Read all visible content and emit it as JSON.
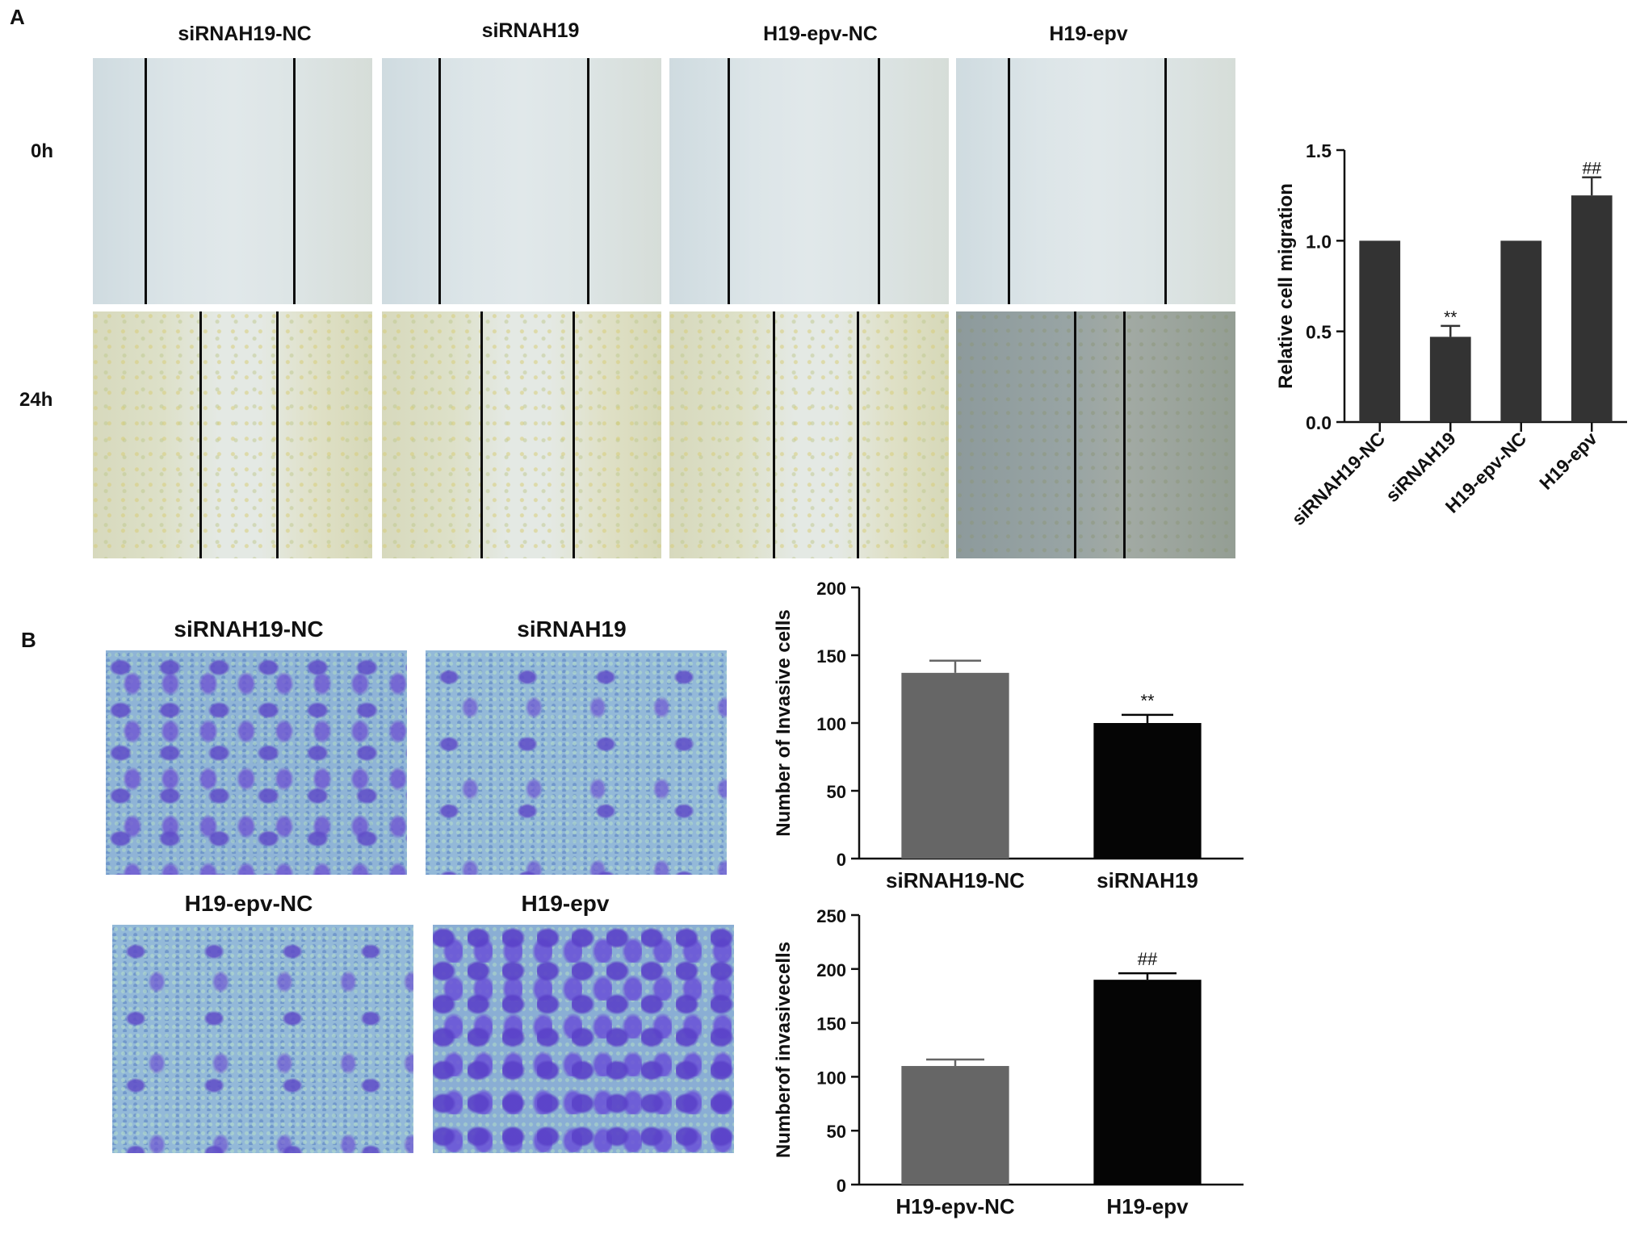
{
  "panel_a": {
    "letter": "A",
    "columns": [
      "siRNAH19-NC",
      "siRNAH19",
      "H19-epv-NC",
      "H19-epv"
    ],
    "rows": [
      "0h",
      "24h"
    ]
  },
  "panel_b": {
    "letter": "B",
    "images_top": [
      "siRNAH19-NC",
      "siRNAH19"
    ],
    "images_bottom": [
      "H19-epv-NC",
      "H19-epv"
    ]
  },
  "chart_data": [
    {
      "type": "bar",
      "categories": [
        "siRNAH19-NC",
        "siRNAH19",
        "H19-epv-NC",
        "H19-epv"
      ],
      "values": [
        1.0,
        0.47,
        1.0,
        1.25
      ],
      "errors": [
        0,
        0.06,
        0,
        0.1
      ],
      "annotations": [
        "",
        "**",
        "",
        "##"
      ],
      "title": "",
      "xlabel": "",
      "ylabel": "Relative cell migration",
      "ylim": [
        0,
        1.5
      ],
      "yticks": [
        "0.0",
        "0.5",
        "1.0",
        "1.5"
      ],
      "color": "#333333"
    },
    {
      "type": "bar",
      "categories": [
        "siRNAH19-NC",
        "siRNAH19"
      ],
      "values": [
        137,
        100
      ],
      "errors": [
        9,
        6
      ],
      "annotations": [
        "",
        "**"
      ],
      "title": "",
      "xlabel": "",
      "ylabel": "Number of Invasive cells",
      "ylim": [
        0,
        200
      ],
      "yticks": [
        "0",
        "50",
        "100",
        "150",
        "200"
      ],
      "colors": [
        "#666666",
        "#050505"
      ]
    },
    {
      "type": "bar",
      "categories": [
        "H19-epv-NC",
        "H19-epv"
      ],
      "values": [
        110,
        190
      ],
      "errors": [
        6,
        6
      ],
      "annotations": [
        "",
        "##"
      ],
      "title": "",
      "xlabel": "",
      "ylabel": "Numberof invasivecells",
      "ylim": [
        0,
        250
      ],
      "yticks": [
        "0",
        "50",
        "100",
        "150",
        "200",
        "250"
      ],
      "colors": [
        "#666666",
        "#050505"
      ]
    }
  ]
}
